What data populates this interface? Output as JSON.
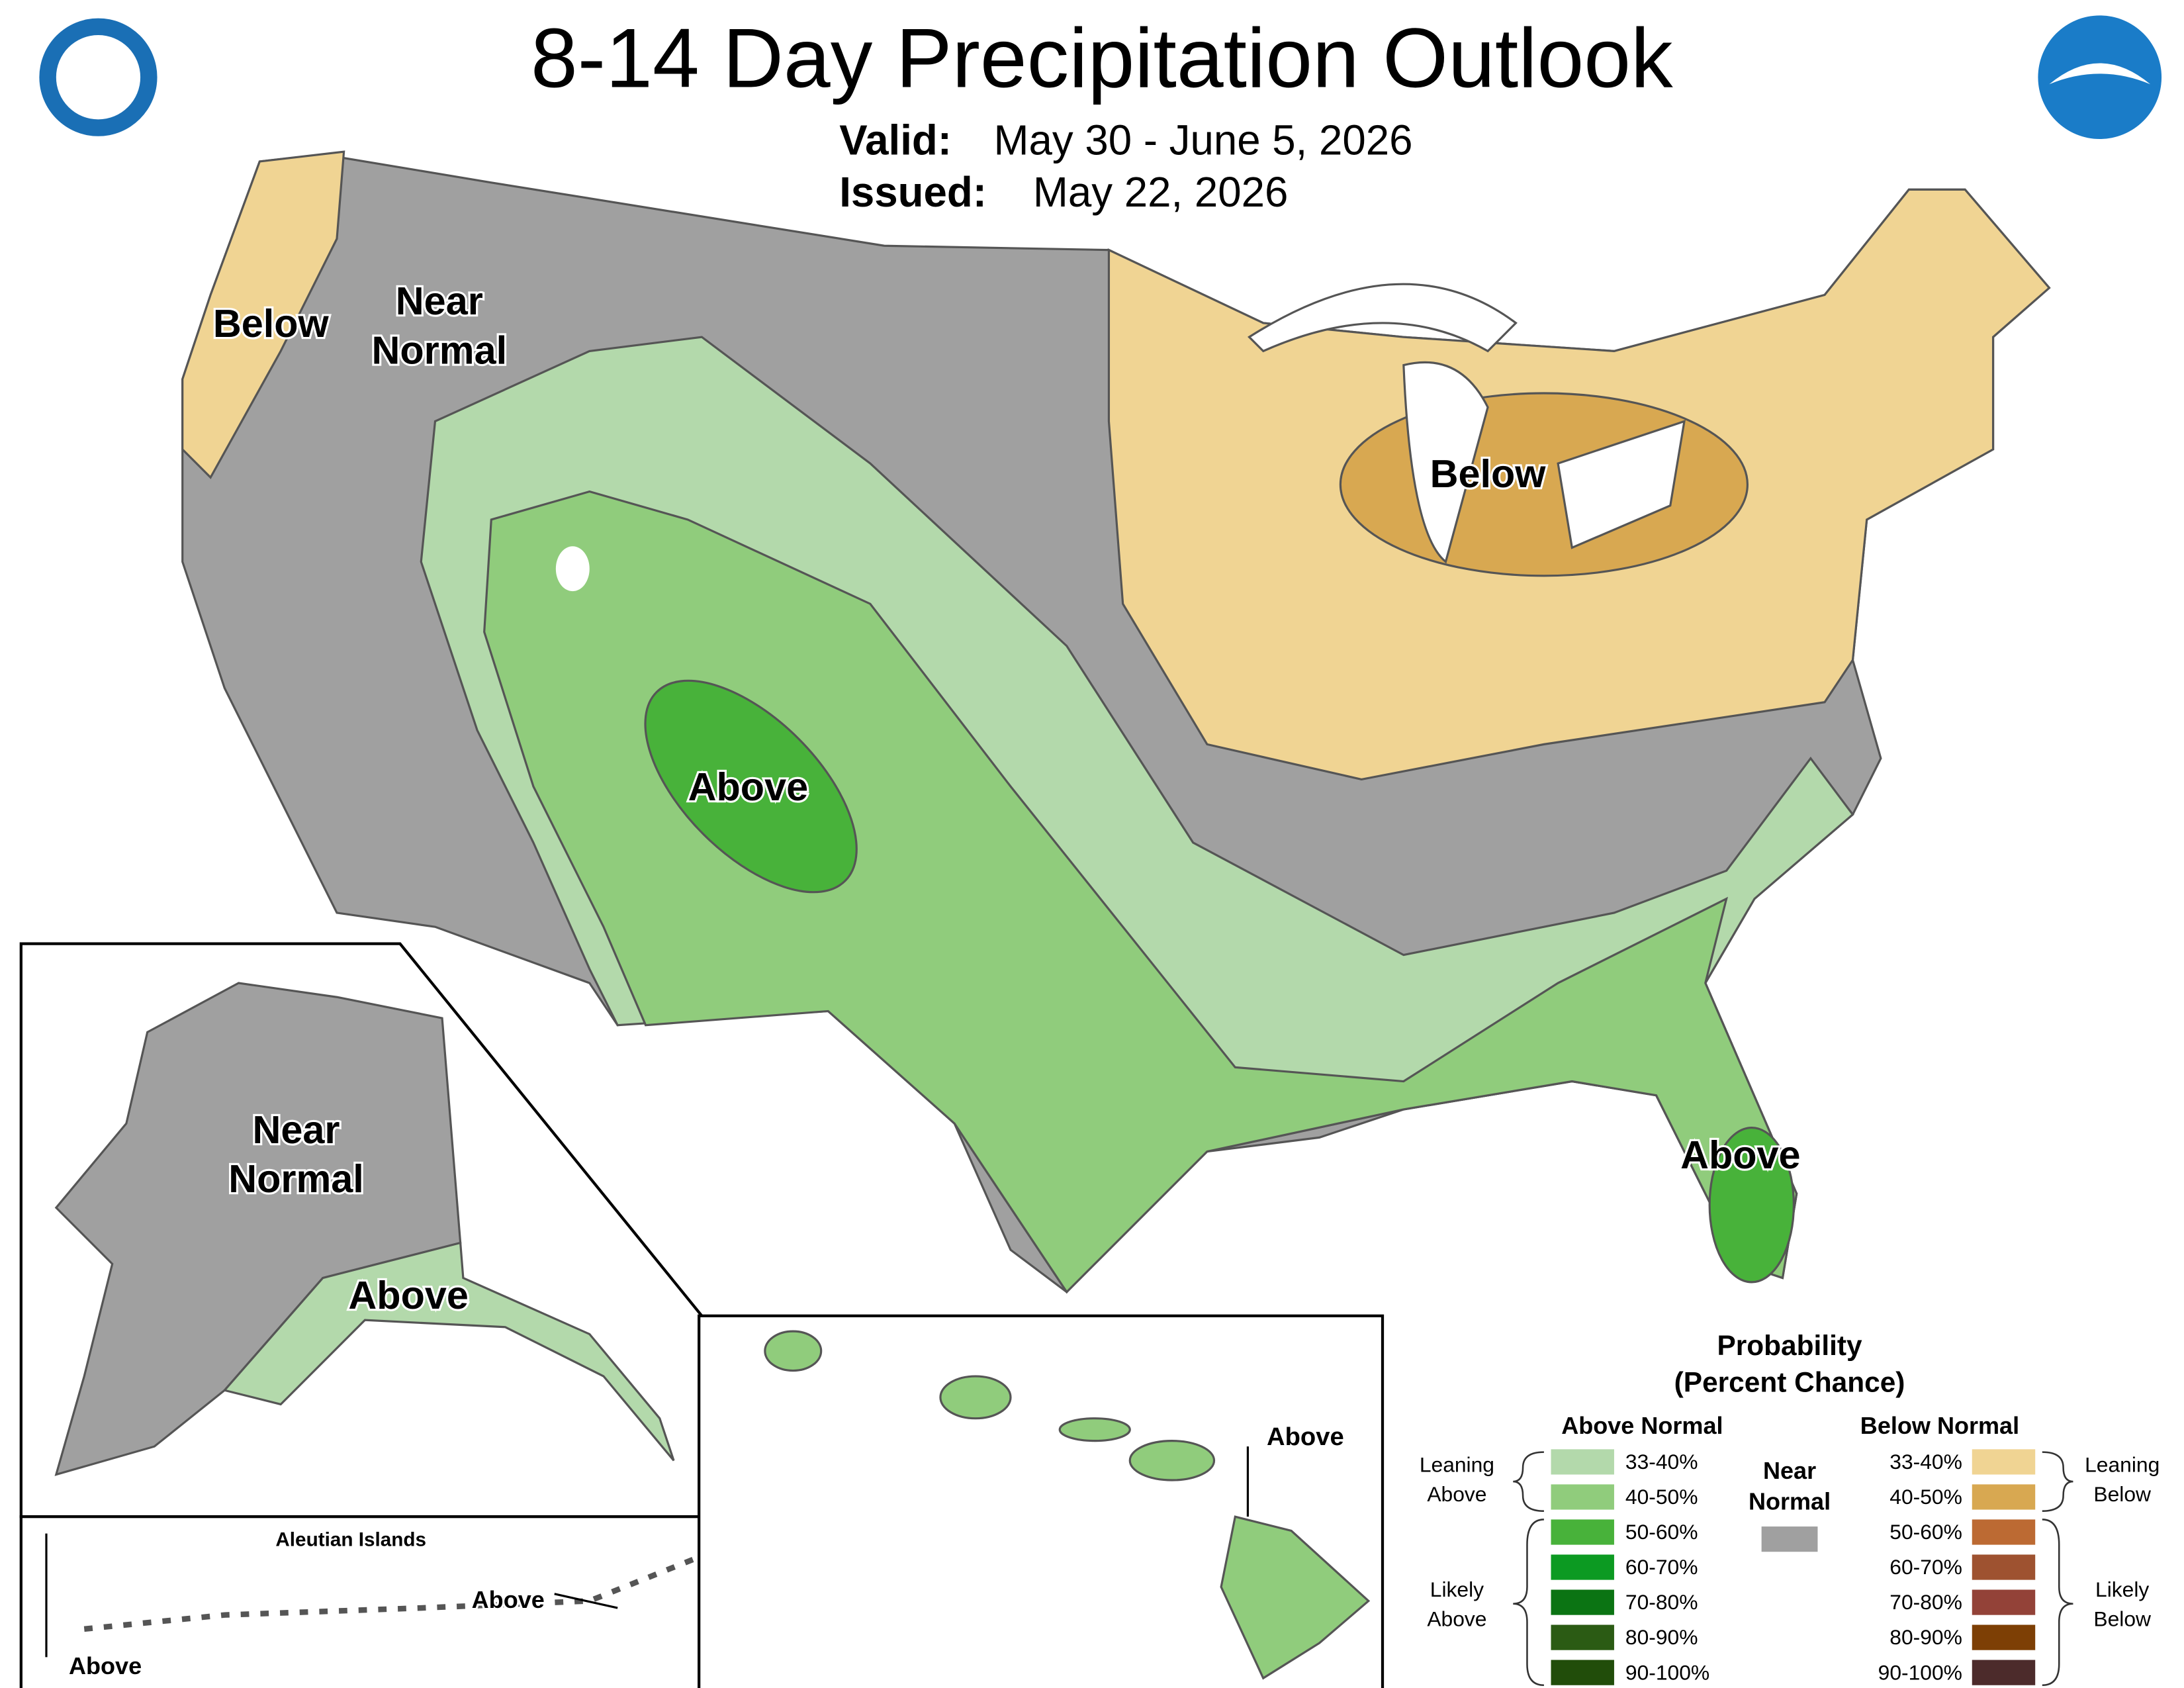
{
  "header": {
    "title": "8-14 Day Precipitation Outlook",
    "valid_label": "Valid:",
    "valid_dates": "May 30 - June 5, 2026",
    "issued_label": "Issued:",
    "issued_date": "May 22, 2026"
  },
  "map_labels": [
    {
      "lines": [
        "Below"
      ]
    },
    {
      "lines": [
        "Near",
        "Normal"
      ]
    },
    {
      "lines": [
        "Below"
      ]
    },
    {
      "lines": [
        "Above"
      ]
    },
    {
      "lines": [
        "Above"
      ]
    },
    {
      "lines": [
        "Near",
        "Normal"
      ]
    },
    {
      "lines": [
        "Above"
      ]
    },
    {
      "lines": [
        "Above"
      ]
    },
    {
      "lines": [
        "Above"
      ]
    },
    {
      "lines": [
        "Above"
      ]
    }
  ],
  "aleutian_title": "Aleutian Islands",
  "legend": {
    "title": "Probability",
    "subtitle": "(Percent Chance)",
    "above": {
      "heading": "Above Normal",
      "items": [
        {
          "range": "33-40%",
          "color": "#b3d9ab"
        },
        {
          "range": "40-50%",
          "color": "#90cc7c"
        },
        {
          "range": "50-60%",
          "color": "#48b23a"
        },
        {
          "range": "60-70%",
          "color": "#0c9a22"
        },
        {
          "range": "70-80%",
          "color": "#0b7413"
        },
        {
          "range": "80-90%",
          "color": "#2b5b14"
        },
        {
          "range": "90-100%",
          "color": "#214d0a"
        }
      ]
    },
    "near": {
      "lines": [
        "Near",
        "Normal"
      ],
      "color": "#a0a0a0"
    },
    "below": {
      "heading": "Below Normal",
      "items": [
        {
          "range": "33-40%",
          "color": "#f0d493"
        },
        {
          "range": "40-50%",
          "color": "#d8a851"
        },
        {
          "range": "50-60%",
          "color": "#bc6a33"
        },
        {
          "range": "60-70%",
          "color": "#9e5230"
        },
        {
          "range": "70-80%",
          "color": "#934238"
        },
        {
          "range": "80-90%",
          "color": "#7d3f05"
        },
        {
          "range": "90-100%",
          "color": "#4c2b2b"
        }
      ]
    },
    "brackets": {
      "leaning_above": [
        "Leaning",
        "Above"
      ],
      "likely_above": [
        "Likely",
        "Above"
      ],
      "leaning_below": [
        "Leaning",
        "Below"
      ],
      "likely_below": [
        "Likely",
        "Below"
      ]
    }
  }
}
